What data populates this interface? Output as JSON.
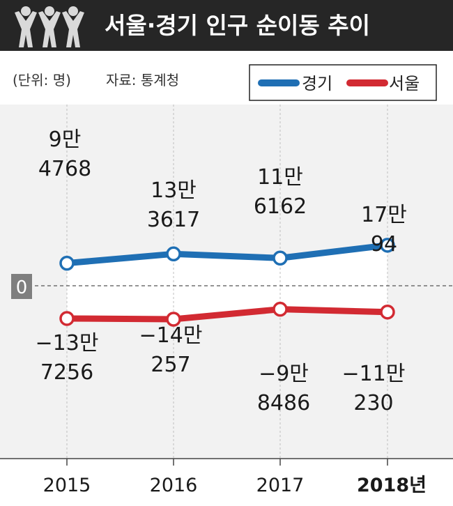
{
  "header": {
    "title": "서울·경기 인구 순이동 추이",
    "unit_note": "(단위: 명)",
    "source_note": "자료: 통계청"
  },
  "chart_data": {
    "type": "line",
    "categories": [
      "2015",
      "2016",
      "2017",
      "2018년"
    ],
    "zero_label": "0",
    "ylim": [
      -200000,
      200000
    ],
    "legend_position": "top-right",
    "series": [
      {
        "name": "경기",
        "color": "#1f6fb4",
        "values": [
          94768,
          133617,
          116162,
          170094
        ],
        "labels": [
          [
            "9만",
            "4768"
          ],
          [
            "13만",
            "3617"
          ],
          [
            "11만",
            "6162"
          ],
          [
            "17만",
            "94"
          ]
        ]
      },
      {
        "name": "서울",
        "color": "#d22a32",
        "values": [
          -137256,
          -140257,
          -98486,
          -110230
        ],
        "labels": [
          [
            "−13만",
            "7256"
          ],
          [
            "−14만",
            "257"
          ],
          [
            "−9만",
            "8486"
          ],
          [
            "−11만",
            "230"
          ]
        ]
      }
    ]
  }
}
